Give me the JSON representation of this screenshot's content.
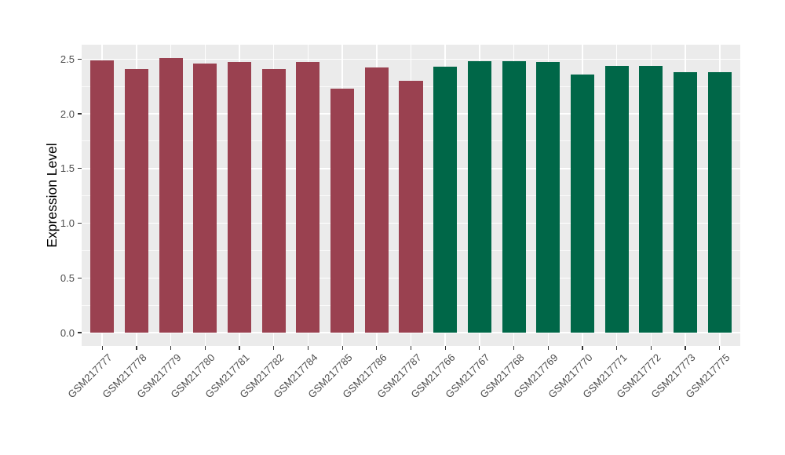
{
  "chart_data": {
    "type": "bar",
    "title": "",
    "xlabel": "",
    "ylabel": "Expression Level",
    "categories": [
      "GSM217777",
      "GSM217778",
      "GSM217779",
      "GSM217780",
      "GSM217781",
      "GSM217782",
      "GSM217784",
      "GSM217785",
      "GSM217786",
      "GSM217787",
      "GSM217766",
      "GSM217767",
      "GSM217768",
      "GSM217769",
      "GSM217770",
      "GSM217771",
      "GSM217772",
      "GSM217773",
      "GSM217775"
    ],
    "values": [
      2.49,
      2.41,
      2.51,
      2.46,
      2.47,
      2.41,
      2.47,
      2.23,
      2.42,
      2.3,
      2.43,
      2.48,
      2.48,
      2.47,
      2.36,
      2.44,
      2.44,
      2.38,
      2.38
    ],
    "bar_colors": [
      "#9A4150",
      "#9A4150",
      "#9A4150",
      "#9A4150",
      "#9A4150",
      "#9A4150",
      "#9A4150",
      "#9A4150",
      "#9A4150",
      "#9A4150",
      "#006748",
      "#006748",
      "#006748",
      "#006748",
      "#006748",
      "#006748",
      "#006748",
      "#006748",
      "#006748"
    ],
    "ytick_labels": [
      "0.0",
      "0.5",
      "1.0",
      "1.5",
      "2.0",
      "2.5"
    ],
    "ytick_values": [
      0,
      0.5,
      1,
      1.5,
      2,
      2.5
    ],
    "minor_gridline_values": [
      0.25,
      0.75,
      1.25,
      1.75,
      2.25
    ],
    "ylim": [
      0,
      2.65
    ],
    "grid": "major and minor horizontal, major vertical at category centers",
    "legend_position": "none",
    "x_label_rotation_deg": 45,
    "style": {
      "figure_background": "#FFFFFF",
      "panel_background": "#EBEBEB",
      "grid_major_color": "#FFFFFF",
      "grid_minor_color": "rgba(255,255,255,0.72)",
      "axis_text_color": "#4D4D4D",
      "axis_title_color": "#000000",
      "tick_mark_color": "#333333",
      "left_group_color": "#9A4150",
      "right_group_color": "#006748"
    }
  }
}
